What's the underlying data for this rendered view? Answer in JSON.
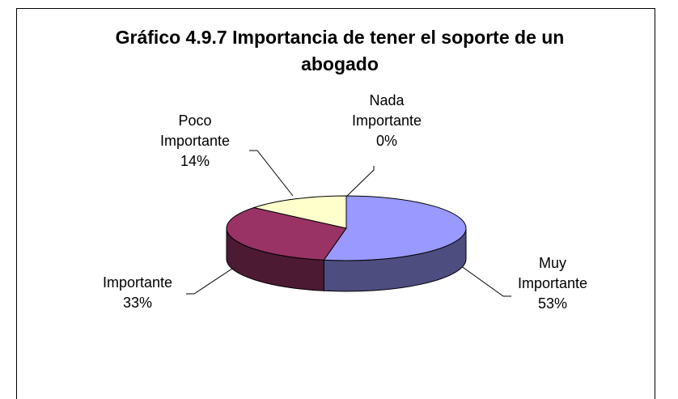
{
  "chart_data": {
    "type": "pie",
    "title": "Gráfico 4.9.7 Importancia de tener el soporte de un abogado",
    "categories": [
      "Muy Importante",
      "Importante",
      "Poco Importante",
      "Nada Importante"
    ],
    "values": [
      53,
      33,
      14,
      0
    ],
    "value_labels": [
      "53%",
      "33%",
      "14%",
      "0%"
    ],
    "colors": [
      "#9999ff",
      "#993366",
      "#ffffcc",
      "#ccffff"
    ],
    "start_angle": 0,
    "direction": "clockwise",
    "style": "3d"
  }
}
